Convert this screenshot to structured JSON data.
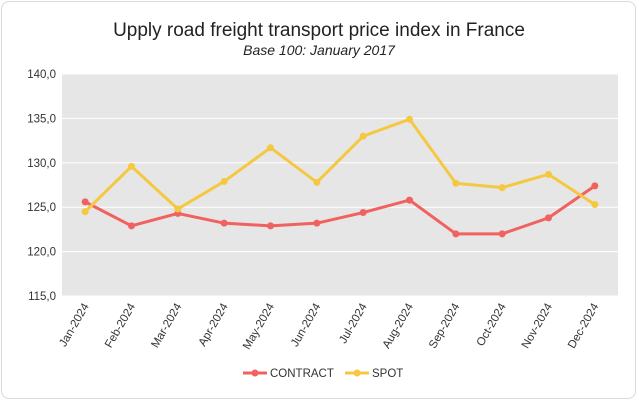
{
  "chart_data": {
    "type": "line",
    "title": "Upply road freight transport price index in France",
    "subtitle": "Base 100: January 2017",
    "xlabel": "",
    "ylabel": "",
    "ylim": [
      115,
      140
    ],
    "yticks": [
      "115,0",
      "120,0",
      "125,0",
      "130,0",
      "135,0",
      "140,0"
    ],
    "categories": [
      "Jan-2024",
      "Feb-2024",
      "Mar-2024",
      "Apr-2024",
      "May-2024",
      "Jun-2024",
      "Jul-2024",
      "Aug-2024",
      "Sep-2024",
      "Oct-2024",
      "Nov-2024",
      "Dec-2024"
    ],
    "series": [
      {
        "name": "CONTRACT",
        "color": "#f0615f",
        "values": [
          125.6,
          122.9,
          124.3,
          123.2,
          122.9,
          123.2,
          124.4,
          125.8,
          122.0,
          122.0,
          123.8,
          127.4
        ]
      },
      {
        "name": "SPOT",
        "color": "#f5c842",
        "values": [
          124.5,
          129.6,
          124.8,
          127.9,
          131.7,
          127.8,
          133.0,
          134.9,
          127.7,
          127.2,
          128.7,
          125.3
        ]
      }
    ],
    "grid": true,
    "plot_background": "#e6e6e6",
    "legend_position": "bottom"
  }
}
